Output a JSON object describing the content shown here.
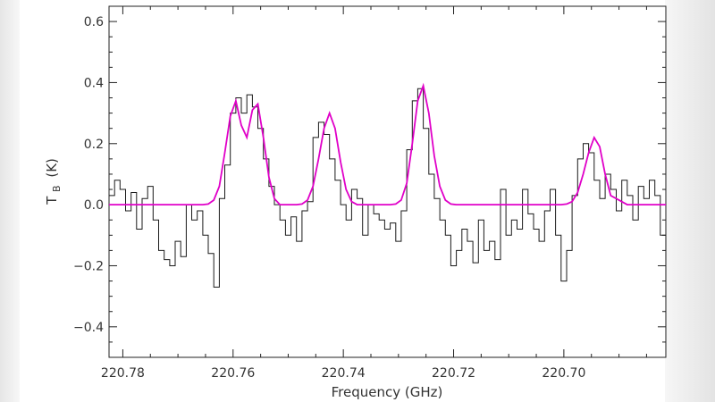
{
  "chart_data": {
    "type": "line",
    "title": "",
    "xlabel": "Frequency (GHz)",
    "ylabel_main": "T",
    "ylabel_sub": "B",
    "ylabel_unit": "(K)",
    "xlim": [
      220.7825,
      220.6815
    ],
    "ylim": [
      -0.5,
      0.65
    ],
    "x_axis_reversed": true,
    "x_ticks": [
      220.78,
      220.76,
      220.74,
      220.72,
      220.7
    ],
    "x_tick_labels": [
      "220.78",
      "220.76",
      "220.74",
      "220.72",
      "220.70"
    ],
    "y_ticks": [
      -0.4,
      -0.2,
      0.0,
      0.2,
      0.4,
      0.6
    ],
    "y_tick_labels": [
      "−0.4",
      "−0.2",
      "0.0",
      "0.2",
      "0.4",
      "0.6"
    ],
    "grid": false,
    "legend": "none",
    "series": [
      {
        "style": "step",
        "color": "#1a1a1a",
        "x": [
          220.7825,
          220.7815,
          220.7805,
          220.7795,
          220.7785,
          220.7775,
          220.7765,
          220.7755,
          220.7745,
          220.7735,
          220.7725,
          220.7715,
          220.7705,
          220.7695,
          220.7685,
          220.7675,
          220.7665,
          220.7655,
          220.7645,
          220.7635,
          220.7625,
          220.7615,
          220.7605,
          220.7595,
          220.7585,
          220.7575,
          220.7565,
          220.7555,
          220.7545,
          220.7535,
          220.7525,
          220.7515,
          220.7505,
          220.7495,
          220.7485,
          220.7475,
          220.7465,
          220.7455,
          220.7445,
          220.7435,
          220.7425,
          220.7415,
          220.7405,
          220.7395,
          220.7385,
          220.7375,
          220.7365,
          220.7355,
          220.7345,
          220.7335,
          220.7325,
          220.7315,
          220.7305,
          220.7295,
          220.7285,
          220.7275,
          220.7265,
          220.7255,
          220.7245,
          220.7235,
          220.7225,
          220.7215,
          220.7205,
          220.7195,
          220.7185,
          220.7175,
          220.7165,
          220.7155,
          220.7145,
          220.7135,
          220.7125,
          220.7115,
          220.7105,
          220.7095,
          220.7085,
          220.7075,
          220.7065,
          220.7055,
          220.7045,
          220.7035,
          220.7025,
          220.7015,
          220.7005,
          220.6995,
          220.6985,
          220.6975,
          220.6965,
          220.6955,
          220.6945,
          220.6935,
          220.6925,
          220.6915,
          220.6905,
          220.6895,
          220.6885,
          220.6875,
          220.6865,
          220.6855,
          220.6845,
          220.6835,
          220.6825,
          220.6815
        ],
        "y": [
          0.03,
          0.08,
          0.05,
          -0.02,
          0.04,
          -0.08,
          0.02,
          0.06,
          -0.05,
          -0.15,
          -0.18,
          -0.2,
          -0.12,
          -0.17,
          0.0,
          -0.05,
          -0.02,
          -0.1,
          -0.16,
          -0.27,
          0.02,
          0.13,
          0.3,
          0.35,
          0.3,
          0.36,
          0.32,
          0.25,
          0.15,
          0.06,
          0.0,
          -0.05,
          -0.1,
          -0.04,
          -0.12,
          -0.02,
          0.01,
          0.22,
          0.27,
          0.23,
          0.15,
          0.08,
          0.0,
          -0.05,
          0.05,
          0.02,
          -0.1,
          0.0,
          -0.03,
          -0.05,
          -0.08,
          -0.06,
          -0.12,
          -0.02,
          0.18,
          0.34,
          0.38,
          0.25,
          0.1,
          0.02,
          -0.05,
          -0.1,
          -0.2,
          -0.15,
          -0.08,
          -0.12,
          -0.19,
          -0.05,
          -0.15,
          -0.12,
          -0.18,
          0.05,
          -0.1,
          -0.05,
          -0.08,
          0.05,
          -0.03,
          -0.08,
          -0.12,
          -0.02,
          0.05,
          -0.1,
          -0.25,
          -0.15,
          0.03,
          0.15,
          0.2,
          0.17,
          0.08,
          0.02,
          0.1,
          0.05,
          -0.02,
          0.08,
          0.03,
          -0.05,
          0.06,
          0.02,
          0.08,
          0.03,
          -0.1,
          -0.18
        ]
      },
      {
        "style": "smooth",
        "color": "#e000c8",
        "x": [
          220.7825,
          220.7795,
          220.7765,
          220.7735,
          220.7705,
          220.7675,
          220.7655,
          220.7645,
          220.7635,
          220.7625,
          220.7615,
          220.7605,
          220.7595,
          220.7585,
          220.7575,
          220.7565,
          220.7555,
          220.7545,
          220.7535,
          220.7525,
          220.7515,
          220.7505,
          220.7495,
          220.7485,
          220.7475,
          220.7465,
          220.7455,
          220.7445,
          220.7435,
          220.7425,
          220.7415,
          220.7405,
          220.7395,
          220.7385,
          220.7375,
          220.7355,
          220.7335,
          220.7315,
          220.7305,
          220.7295,
          220.7285,
          220.7275,
          220.7265,
          220.7255,
          220.7245,
          220.7235,
          220.7225,
          220.7215,
          220.7205,
          220.7195,
          220.7175,
          220.7145,
          220.7115,
          220.7085,
          220.7055,
          220.7035,
          220.7025,
          220.7015,
          220.7005,
          220.6995,
          220.6985,
          220.6975,
          220.6965,
          220.6955,
          220.6945,
          220.6935,
          220.6925,
          220.6915,
          220.6885,
          220.6855,
          220.6815
        ],
        "y": [
          0.0,
          0.0,
          0.0,
          0.0,
          0.0,
          0.0,
          0.0,
          0.002,
          0.015,
          0.06,
          0.17,
          0.29,
          0.34,
          0.26,
          0.22,
          0.31,
          0.33,
          0.22,
          0.09,
          0.02,
          0.0,
          0.0,
          0.0,
          0.0,
          0.002,
          0.015,
          0.06,
          0.15,
          0.25,
          0.3,
          0.25,
          0.14,
          0.05,
          0.01,
          0.0,
          0.0,
          0.0,
          0.0,
          0.002,
          0.015,
          0.07,
          0.2,
          0.34,
          0.39,
          0.3,
          0.16,
          0.06,
          0.015,
          0.002,
          0.0,
          0.0,
          0.0,
          0.0,
          0.0,
          0.0,
          0.0,
          0.0,
          0.0,
          0.0,
          0.002,
          0.01,
          0.04,
          0.1,
          0.17,
          0.22,
          0.19,
          0.1,
          0.03,
          0.0,
          0.0,
          0.0
        ]
      }
    ]
  }
}
